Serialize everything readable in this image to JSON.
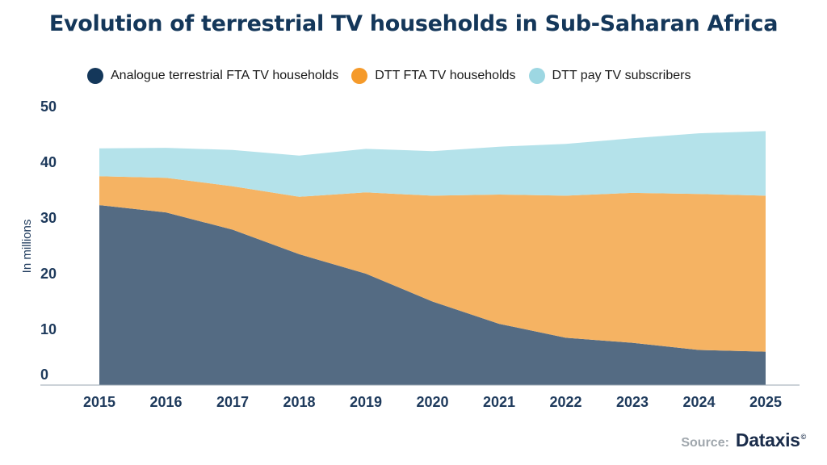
{
  "chart_data": {
    "type": "area",
    "stacked": true,
    "title": "Evolution of terrestrial TV households in Sub-Saharan Africa",
    "ylabel": "In millions",
    "xlabel": "",
    "ylim": [
      0,
      50
    ],
    "yticks": [
      0,
      10,
      20,
      30,
      40,
      50
    ],
    "categories": [
      "2015",
      "2016",
      "2017",
      "2018",
      "2019",
      "2020",
      "2021",
      "2022",
      "2023",
      "2024",
      "2025"
    ],
    "legend_position": "top",
    "series": [
      {
        "name": "Analogue terrestrial FTA TV households",
        "color": "#546b83",
        "values": [
          32.3,
          31.0,
          27.9,
          23.5,
          20.0,
          15.0,
          11.0,
          8.5,
          7.6,
          6.3,
          6.0
        ]
      },
      {
        "name": "DTT FTA TV households",
        "color": "#f5b363",
        "values": [
          5.2,
          6.2,
          7.8,
          10.3,
          14.6,
          19.0,
          23.2,
          25.5,
          26.9,
          28.0,
          28.0
        ]
      },
      {
        "name": "DTT pay TV subscribers",
        "color": "#b4e2ea",
        "values": [
          5.0,
          5.4,
          6.5,
          7.4,
          7.8,
          8.0,
          8.6,
          9.3,
          9.8,
          10.9,
          11.6
        ]
      }
    ],
    "legend_swatch_colors": [
      "#14375a",
      "#f59a2a",
      "#9dd7e2"
    ]
  },
  "source": {
    "label": "Source:",
    "logo": "Dataxis",
    "copyright": "©"
  }
}
